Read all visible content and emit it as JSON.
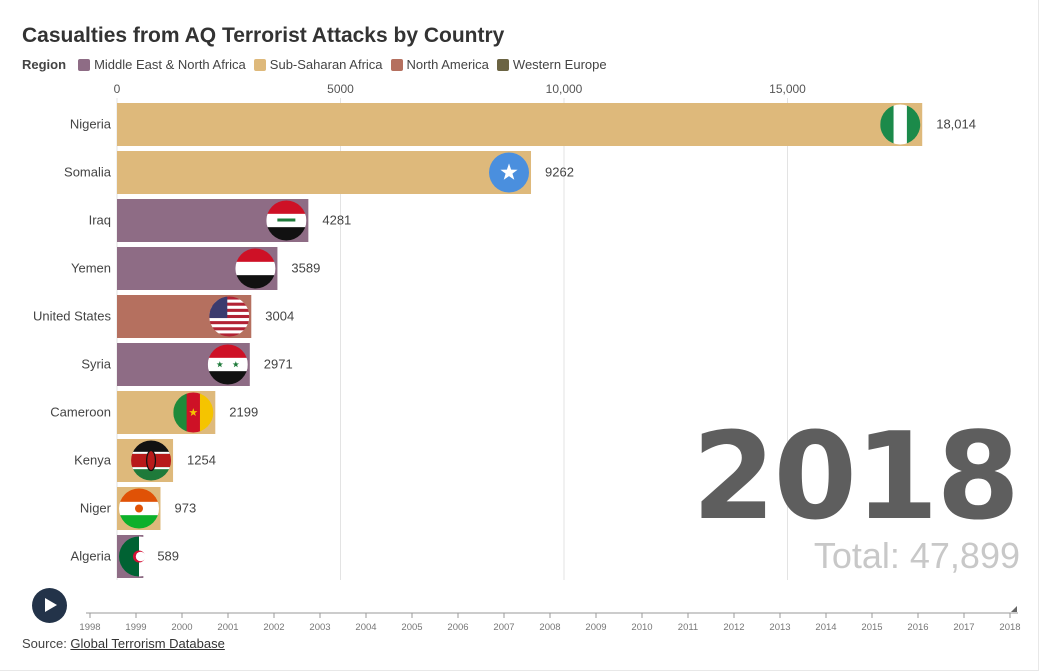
{
  "title": "Casualties from AQ Terrorist Attacks by Country",
  "legend": {
    "title": "Region",
    "items": [
      {
        "label": "Middle East & North Africa",
        "color": "#8e6c85"
      },
      {
        "label": "Sub-Saharan Africa",
        "color": "#deb97b"
      },
      {
        "label": "North America",
        "color": "#b5705f"
      },
      {
        "label": "Western Europe",
        "color": "#6b6443"
      }
    ]
  },
  "chart_data": {
    "type": "bar",
    "orientation": "horizontal",
    "categories": [
      "Nigeria",
      "Somalia",
      "Iraq",
      "Yemen",
      "United States",
      "Syria",
      "Cameroon",
      "Kenya",
      "Niger",
      "Algeria"
    ],
    "values": [
      18014,
      9262,
      4281,
      3589,
      3004,
      2971,
      2199,
      1254,
      973,
      589
    ],
    "value_labels": [
      "18,014",
      "9262",
      "4281",
      "3589",
      "3004",
      "2971",
      "2199",
      "1254",
      "973",
      "589"
    ],
    "regions": [
      "Sub-Saharan Africa",
      "Sub-Saharan Africa",
      "Middle East & North Africa",
      "Middle East & North Africa",
      "North America",
      "Middle East & North Africa",
      "Sub-Saharan Africa",
      "Sub-Saharan Africa",
      "Sub-Saharan Africa",
      "Middle East & North Africa"
    ],
    "flag_icons": [
      "nigeria-flag-icon",
      "somalia-flag-icon",
      "iraq-flag-icon",
      "yemen-flag-icon",
      "united-states-flag-icon",
      "syria-flag-icon",
      "cameroon-flag-icon",
      "kenya-flag-icon",
      "niger-flag-icon",
      "algeria-flag-icon"
    ],
    "x_ticks": [
      0,
      5000,
      10000,
      15000
    ],
    "x_tick_labels": [
      "0",
      "5000",
      "10,000",
      "15,000"
    ],
    "xlim": [
      0,
      20000
    ],
    "axis_position": "top",
    "grid": true
  },
  "year": "2018",
  "total": "Total: 47,899",
  "timeline": {
    "years": [
      "1998",
      "1999",
      "2000",
      "2001",
      "2002",
      "2003",
      "2004",
      "2005",
      "2006",
      "2007",
      "2008",
      "2009",
      "2010",
      "2011",
      "2012",
      "2013",
      "2014",
      "2015",
      "2016",
      "2017",
      "2018"
    ],
    "current": "2018"
  },
  "source": {
    "prefix": "Source: ",
    "link_text": "Global Terrorism Database"
  }
}
